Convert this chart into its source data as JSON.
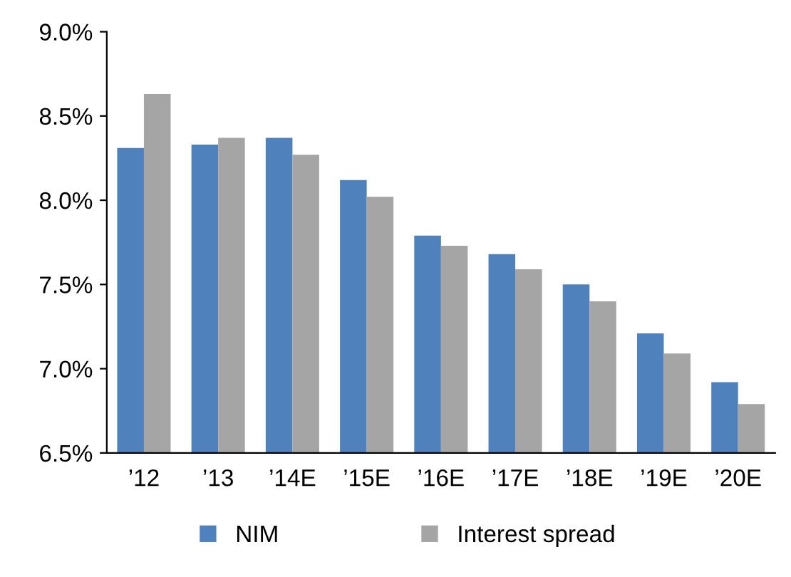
{
  "chart_data": {
    "type": "bar",
    "categories": [
      "’12",
      "’13",
      "’14E",
      "’15E",
      "’16E",
      "’17E",
      "’18E",
      "’19E",
      "’20E"
    ],
    "series": [
      {
        "name": "NIM",
        "color": "#4f81bd",
        "values": [
          8.31,
          8.33,
          8.37,
          8.12,
          7.79,
          7.68,
          7.5,
          7.21,
          6.92
        ]
      },
      {
        "name": "Interest spread",
        "color": "#a5a5a5",
        "values": [
          8.63,
          8.37,
          8.27,
          8.02,
          7.73,
          7.59,
          7.4,
          7.09,
          6.79
        ]
      }
    ],
    "ylim": [
      6.5,
      9.0
    ],
    "yticks": [
      {
        "value": 6.5,
        "label": "6.5%"
      },
      {
        "value": 7.0,
        "label": "7.0%"
      },
      {
        "value": 7.5,
        "label": "7.5%"
      },
      {
        "value": 8.0,
        "label": "8.0%"
      },
      {
        "value": 8.5,
        "label": "8.5%"
      },
      {
        "value": 9.0,
        "label": "9.0%"
      }
    ],
    "grid": false,
    "legend": "bottom"
  }
}
